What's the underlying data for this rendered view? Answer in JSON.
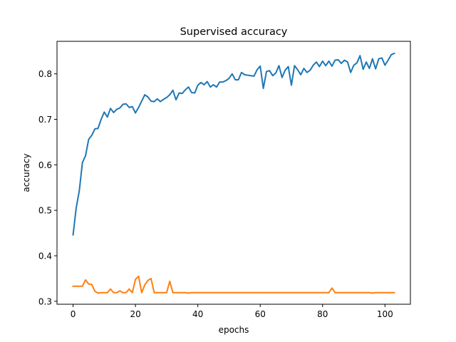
{
  "chart_data": {
    "type": "line",
    "title": "Supervised accuracy",
    "xlabel": "epochs",
    "ylabel": "accuracy",
    "xlim": [
      -5.15,
      108.15
    ],
    "ylim": [
      0.2935,
      0.8715
    ],
    "xticks": [
      0,
      20,
      40,
      60,
      80,
      100
    ],
    "yticks": [
      0.3,
      0.4,
      0.5,
      0.6,
      0.7,
      0.8
    ],
    "ytick_labels": [
      "0.3",
      "0.4",
      "0.5",
      "0.6",
      "0.7",
      "0.8"
    ],
    "grid": false,
    "legend": "none",
    "series": [
      {
        "color": "#1f77b4",
        "values": [
          0.446,
          0.505,
          0.543,
          0.605,
          0.62,
          0.656,
          0.665,
          0.679,
          0.68,
          0.7,
          0.716,
          0.705,
          0.724,
          0.715,
          0.722,
          0.725,
          0.733,
          0.734,
          0.726,
          0.728,
          0.714,
          0.726,
          0.74,
          0.754,
          0.749,
          0.74,
          0.739,
          0.745,
          0.739,
          0.744,
          0.748,
          0.754,
          0.764,
          0.743,
          0.758,
          0.757,
          0.765,
          0.771,
          0.759,
          0.758,
          0.775,
          0.781,
          0.776,
          0.783,
          0.771,
          0.776,
          0.771,
          0.782,
          0.782,
          0.785,
          0.79,
          0.8,
          0.787,
          0.787,
          0.803,
          0.798,
          0.797,
          0.796,
          0.795,
          0.809,
          0.817,
          0.768,
          0.805,
          0.807,
          0.796,
          0.802,
          0.818,
          0.792,
          0.808,
          0.816,
          0.775,
          0.818,
          0.809,
          0.798,
          0.812,
          0.803,
          0.808,
          0.819,
          0.826,
          0.816,
          0.828,
          0.818,
          0.828,
          0.817,
          0.83,
          0.831,
          0.823,
          0.83,
          0.826,
          0.803,
          0.819,
          0.824,
          0.84,
          0.81,
          0.826,
          0.812,
          0.833,
          0.811,
          0.833,
          0.835,
          0.819,
          0.83,
          0.842,
          0.845
        ]
      },
      {
        "color": "#ff7f0e",
        "values": [
          0.333,
          0.333,
          0.333,
          0.333,
          0.347,
          0.338,
          0.337,
          0.322,
          0.318,
          0.319,
          0.319,
          0.319,
          0.327,
          0.319,
          0.319,
          0.323,
          0.319,
          0.319,
          0.327,
          0.319,
          0.348,
          0.355,
          0.319,
          0.336,
          0.346,
          0.35,
          0.319,
          0.319,
          0.319,
          0.319,
          0.319,
          0.344,
          0.319,
          0.319,
          0.319,
          0.319,
          0.319,
          0.318,
          0.319,
          0.319,
          0.319,
          0.319,
          0.319,
          0.319,
          0.319,
          0.319,
          0.319,
          0.319,
          0.319,
          0.319,
          0.319,
          0.319,
          0.319,
          0.319,
          0.319,
          0.319,
          0.319,
          0.319,
          0.319,
          0.319,
          0.319,
          0.319,
          0.319,
          0.319,
          0.319,
          0.319,
          0.319,
          0.319,
          0.319,
          0.319,
          0.319,
          0.319,
          0.319,
          0.319,
          0.319,
          0.319,
          0.319,
          0.319,
          0.319,
          0.319,
          0.319,
          0.319,
          0.319,
          0.329,
          0.319,
          0.319,
          0.319,
          0.319,
          0.319,
          0.319,
          0.319,
          0.319,
          0.319,
          0.319,
          0.319,
          0.319,
          0.318,
          0.319,
          0.319,
          0.319,
          0.319,
          0.319,
          0.319,
          0.319
        ]
      }
    ]
  }
}
